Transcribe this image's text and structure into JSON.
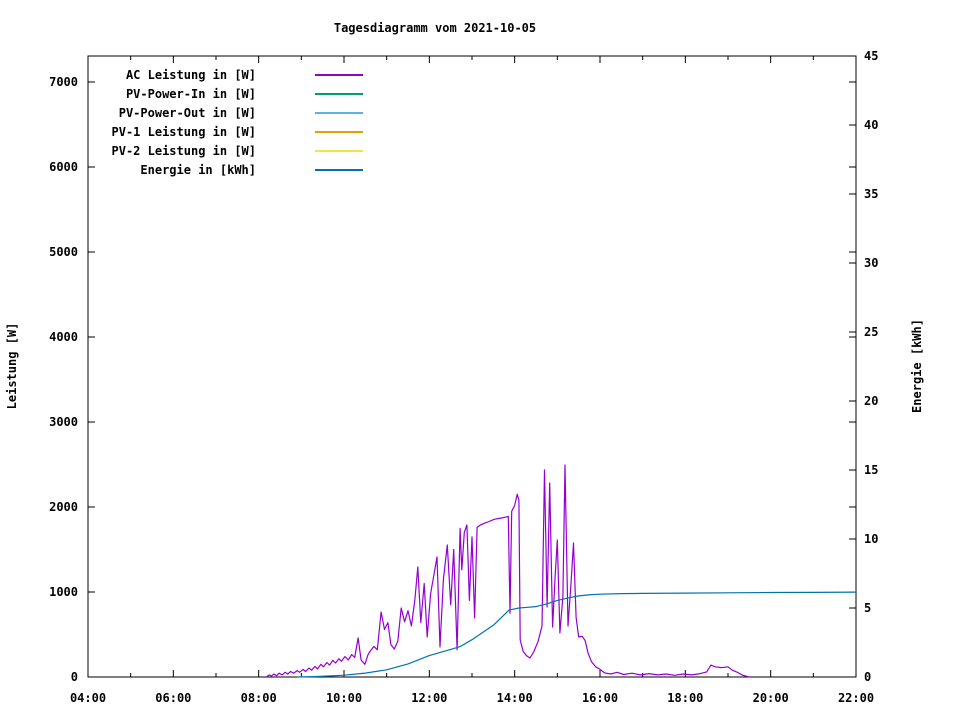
{
  "title": "Tagesdiagramm vom 2021-10-05",
  "chart_data": {
    "type": "line",
    "title": "Tagesdiagramm vom 2021-10-05",
    "background_color": "#ffffff",
    "frame_color": "#000000",
    "grid": false,
    "legend_position": "top-left-inside",
    "x_axis": {
      "kind": "time",
      "range_hours": [
        4,
        22
      ],
      "major_tick_every_hours": 2,
      "minor_tick_every_hours": 1,
      "tick_labels": [
        "04:00",
        "06:00",
        "08:00",
        "10:00",
        "12:00",
        "14:00",
        "16:00",
        "18:00",
        "20:00",
        "22:00"
      ]
    },
    "y_axis": {
      "label": "Leistung [W]",
      "range": [
        0,
        7318
      ],
      "tick_step": 1000,
      "tick_labels": [
        "0",
        "1000",
        "2000",
        "3000",
        "4000",
        "5000",
        "6000",
        "7000"
      ]
    },
    "y2_axis": {
      "label": "Energie [kWh]",
      "range": [
        0,
        45
      ],
      "tick_step": 5,
      "tick_labels": [
        "0",
        "5",
        "10",
        "15",
        "20",
        "25",
        "30",
        "35",
        "40",
        "45"
      ]
    },
    "legend": [
      {
        "label": "AC Leistung in [W]",
        "color": "#9400d3"
      },
      {
        "label": "PV-Power-In in [W]",
        "color": "#009e73"
      },
      {
        "label": "PV-Power-Out in [W]",
        "color": "#56b4e9"
      },
      {
        "label": "PV-1 Leistung in [W]",
        "color": "#e69f00"
      },
      {
        "label": "PV-2 Leistung in [W]",
        "color": "#f0e442"
      },
      {
        "label": "Energie in [kWh]",
        "color": "#0072b2"
      }
    ],
    "series": [
      {
        "name": "AC Leistung in [W]",
        "color": "#9400d3",
        "axis": "y1",
        "units": "W",
        "points": [
          [
            8.18,
            0
          ],
          [
            8.25,
            25
          ],
          [
            8.3,
            10
          ],
          [
            8.36,
            35
          ],
          [
            8.42,
            15
          ],
          [
            8.48,
            45
          ],
          [
            8.55,
            25
          ],
          [
            8.62,
            55
          ],
          [
            8.68,
            35
          ],
          [
            8.75,
            65
          ],
          [
            8.82,
            45
          ],
          [
            8.9,
            75
          ],
          [
            8.96,
            55
          ],
          [
            9.04,
            90
          ],
          [
            9.1,
            65
          ],
          [
            9.18,
            105
          ],
          [
            9.24,
            80
          ],
          [
            9.32,
            125
          ],
          [
            9.38,
            95
          ],
          [
            9.46,
            150
          ],
          [
            9.52,
            120
          ],
          [
            9.6,
            170
          ],
          [
            9.66,
            140
          ],
          [
            9.74,
            195
          ],
          [
            9.8,
            165
          ],
          [
            9.88,
            215
          ],
          [
            9.94,
            185
          ],
          [
            10.02,
            240
          ],
          [
            10.1,
            200
          ],
          [
            10.18,
            265
          ],
          [
            10.25,
            230
          ],
          [
            10.33,
            460
          ],
          [
            10.4,
            200
          ],
          [
            10.49,
            150
          ],
          [
            10.56,
            260
          ],
          [
            10.61,
            300
          ],
          [
            10.7,
            360
          ],
          [
            10.78,
            320
          ],
          [
            10.87,
            765
          ],
          [
            10.95,
            560
          ],
          [
            11.03,
            640
          ],
          [
            11.1,
            380
          ],
          [
            11.18,
            330
          ],
          [
            11.26,
            420
          ],
          [
            11.34,
            812
          ],
          [
            11.42,
            650
          ],
          [
            11.5,
            780
          ],
          [
            11.58,
            600
          ],
          [
            11.66,
            900
          ],
          [
            11.73,
            1294
          ],
          [
            11.8,
            640
          ],
          [
            11.88,
            1100
          ],
          [
            11.95,
            470
          ],
          [
            12.03,
            980
          ],
          [
            12.1,
            1180
          ],
          [
            12.18,
            1412
          ],
          [
            12.25,
            353
          ],
          [
            12.33,
            1150
          ],
          [
            12.42,
            1553
          ],
          [
            12.5,
            850
          ],
          [
            12.57,
            1500
          ],
          [
            12.65,
            320
          ],
          [
            12.72,
            1750
          ],
          [
            12.76,
            1260
          ],
          [
            12.82,
            1700
          ],
          [
            12.88,
            1790
          ],
          [
            12.94,
            900
          ],
          [
            13.0,
            1650
          ],
          [
            13.06,
            694
          ],
          [
            13.12,
            1760
          ],
          [
            13.2,
            1790
          ],
          [
            13.3,
            1810
          ],
          [
            13.4,
            1830
          ],
          [
            13.52,
            1855
          ],
          [
            13.62,
            1865
          ],
          [
            13.74,
            1875
          ],
          [
            13.85,
            1890
          ],
          [
            13.89,
            750
          ],
          [
            13.93,
            1950
          ],
          [
            14.0,
            2020
          ],
          [
            14.06,
            2150
          ],
          [
            14.1,
            2080
          ],
          [
            14.13,
            435
          ],
          [
            14.2,
            300
          ],
          [
            14.28,
            250
          ],
          [
            14.36,
            224
          ],
          [
            14.45,
            300
          ],
          [
            14.55,
            420
          ],
          [
            14.64,
            600
          ],
          [
            14.7,
            2435
          ],
          [
            14.76,
            824
          ],
          [
            14.82,
            2282
          ],
          [
            14.89,
            588
          ],
          [
            14.95,
            1200
          ],
          [
            15.0,
            1612
          ],
          [
            15.06,
            518
          ],
          [
            15.13,
            950
          ],
          [
            15.18,
            2494
          ],
          [
            15.25,
            600
          ],
          [
            15.32,
            1100
          ],
          [
            15.38,
            1576
          ],
          [
            15.44,
            700
          ],
          [
            15.5,
            470
          ],
          [
            15.58,
            480
          ],
          [
            15.65,
            430
          ],
          [
            15.72,
            280
          ],
          [
            15.8,
            180
          ],
          [
            15.9,
            120
          ],
          [
            16.0,
            90
          ],
          [
            16.1,
            50
          ],
          [
            16.25,
            35
          ],
          [
            16.4,
            55
          ],
          [
            16.55,
            30
          ],
          [
            16.75,
            45
          ],
          [
            16.95,
            25
          ],
          [
            17.15,
            40
          ],
          [
            17.35,
            25
          ],
          [
            17.55,
            35
          ],
          [
            17.75,
            20
          ],
          [
            17.95,
            35
          ],
          [
            18.15,
            25
          ],
          [
            18.35,
            40
          ],
          [
            18.5,
            60
          ],
          [
            18.6,
            140
          ],
          [
            18.7,
            120
          ],
          [
            18.85,
            110
          ],
          [
            19.0,
            120
          ],
          [
            19.1,
            80
          ],
          [
            19.2,
            60
          ],
          [
            19.35,
            20
          ],
          [
            19.5,
            0
          ]
        ]
      },
      {
        "name": "PV-Power-In in [W]",
        "color": "#009e73",
        "axis": "y1",
        "units": "W",
        "points": []
      },
      {
        "name": "PV-Power-Out in [W]",
        "color": "#56b4e9",
        "axis": "y1",
        "units": "W",
        "points": []
      },
      {
        "name": "PV-1 Leistung in [W]",
        "color": "#e69f00",
        "axis": "y1",
        "units": "W",
        "points": []
      },
      {
        "name": "PV-2 Leistung in [W]",
        "color": "#f0e442",
        "axis": "y1",
        "units": "W",
        "points": []
      },
      {
        "name": "Energie in [kWh]",
        "color": "#0072b2",
        "axis": "y2",
        "units": "kWh",
        "points": [
          [
            8.9,
            0
          ],
          [
            9.3,
            0.03
          ],
          [
            9.7,
            0.08
          ],
          [
            10.0,
            0.13
          ],
          [
            10.5,
            0.28
          ],
          [
            11.0,
            0.52
          ],
          [
            11.5,
            0.95
          ],
          [
            12.0,
            1.55
          ],
          [
            12.5,
            2.0
          ],
          [
            12.72,
            2.2
          ],
          [
            13.0,
            2.7
          ],
          [
            13.5,
            3.75
          ],
          [
            13.87,
            4.85
          ],
          [
            14.1,
            5.0
          ],
          [
            14.3,
            5.05
          ],
          [
            14.5,
            5.1
          ],
          [
            14.75,
            5.3
          ],
          [
            15.0,
            5.55
          ],
          [
            15.3,
            5.75
          ],
          [
            15.5,
            5.88
          ],
          [
            15.8,
            5.97
          ],
          [
            16.0,
            6.0
          ],
          [
            16.5,
            6.04
          ],
          [
            17.0,
            6.06
          ],
          [
            18.0,
            6.08
          ],
          [
            19.0,
            6.1
          ],
          [
            20.0,
            6.12
          ],
          [
            21.0,
            6.13
          ],
          [
            22.0,
            6.15
          ]
        ]
      }
    ]
  }
}
